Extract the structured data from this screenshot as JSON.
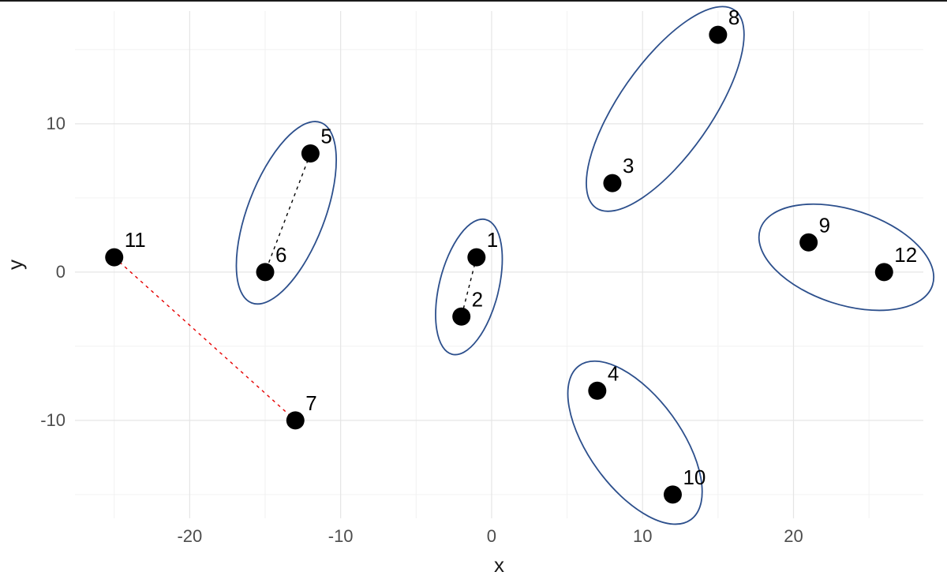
{
  "chart_data": {
    "type": "scatter",
    "title": "",
    "xlabel": "x",
    "ylabel": "y",
    "xlim": [
      -27.6,
      28.6
    ],
    "ylim": [
      -16.6,
      17.6
    ],
    "x_ticks": [
      -20,
      -10,
      0,
      10,
      20
    ],
    "x_minor_ticks": [
      -25,
      -15,
      -5,
      5,
      15,
      25
    ],
    "y_ticks": [
      -10,
      0,
      10
    ],
    "y_minor_ticks": [
      -15,
      -5,
      5,
      15
    ],
    "grid": true,
    "legend": false,
    "points": [
      {
        "label": "1",
        "x": -1,
        "y": 1
      },
      {
        "label": "2",
        "x": -2,
        "y": -3
      },
      {
        "label": "3",
        "x": 8,
        "y": 6
      },
      {
        "label": "4",
        "x": 7,
        "y": -8
      },
      {
        "label": "5",
        "x": -12,
        "y": 8
      },
      {
        "label": "6",
        "x": -15,
        "y": 0
      },
      {
        "label": "7",
        "x": -13,
        "y": -10
      },
      {
        "label": "8",
        "x": 15,
        "y": 16
      },
      {
        "label": "9",
        "x": 21,
        "y": 2
      },
      {
        "label": "10",
        "x": 12,
        "y": -15
      },
      {
        "label": "11",
        "x": -25,
        "y": 1
      },
      {
        "label": "12",
        "x": 26,
        "y": 0
      }
    ],
    "edges": [
      {
        "from": "5",
        "to": "6",
        "color": "#000000",
        "style": "dashed"
      },
      {
        "from": "1",
        "to": "2",
        "color": "#000000",
        "style": "dashed"
      },
      {
        "from": "11",
        "to": "7",
        "color": "#e60000",
        "style": "dashed"
      }
    ],
    "clusters": [
      {
        "members": [
          "5",
          "6"
        ],
        "cx": -13.6,
        "cy": 4.0,
        "rx": 6.4,
        "ry": 2.6,
        "angle_deg": -69
      },
      {
        "members": [
          "1",
          "2"
        ],
        "cx": -1.5,
        "cy": -1.0,
        "rx": 4.6,
        "ry": 2.0,
        "angle_deg": -76
      },
      {
        "members": [
          "3",
          "8"
        ],
        "cx": 11.5,
        "cy": 11.0,
        "rx": 8.0,
        "ry": 3.1,
        "angle_deg": -55
      },
      {
        "members": [
          "9",
          "12"
        ],
        "cx": 23.5,
        "cy": 1.0,
        "rx": 6.0,
        "ry": 3.2,
        "angle_deg": 18
      },
      {
        "members": [
          "4",
          "10"
        ],
        "cx": 9.5,
        "cy": -11.5,
        "rx": 6.3,
        "ry": 3.1,
        "angle_deg": 54
      }
    ],
    "styles": {
      "point_color": "#000000",
      "point_radius": 11.5,
      "label_color": "#000000",
      "label_font_size": 26,
      "ellipse_color": "#2c4f8c",
      "ellipse_stroke_width": 1.8,
      "grid_color": "#e5e5e5",
      "minor_grid_color": "#f2f2f2",
      "axis_text_color": "#4d4d4d",
      "axis_title_color": "#1a1a1a",
      "background": "#ffffff"
    }
  }
}
